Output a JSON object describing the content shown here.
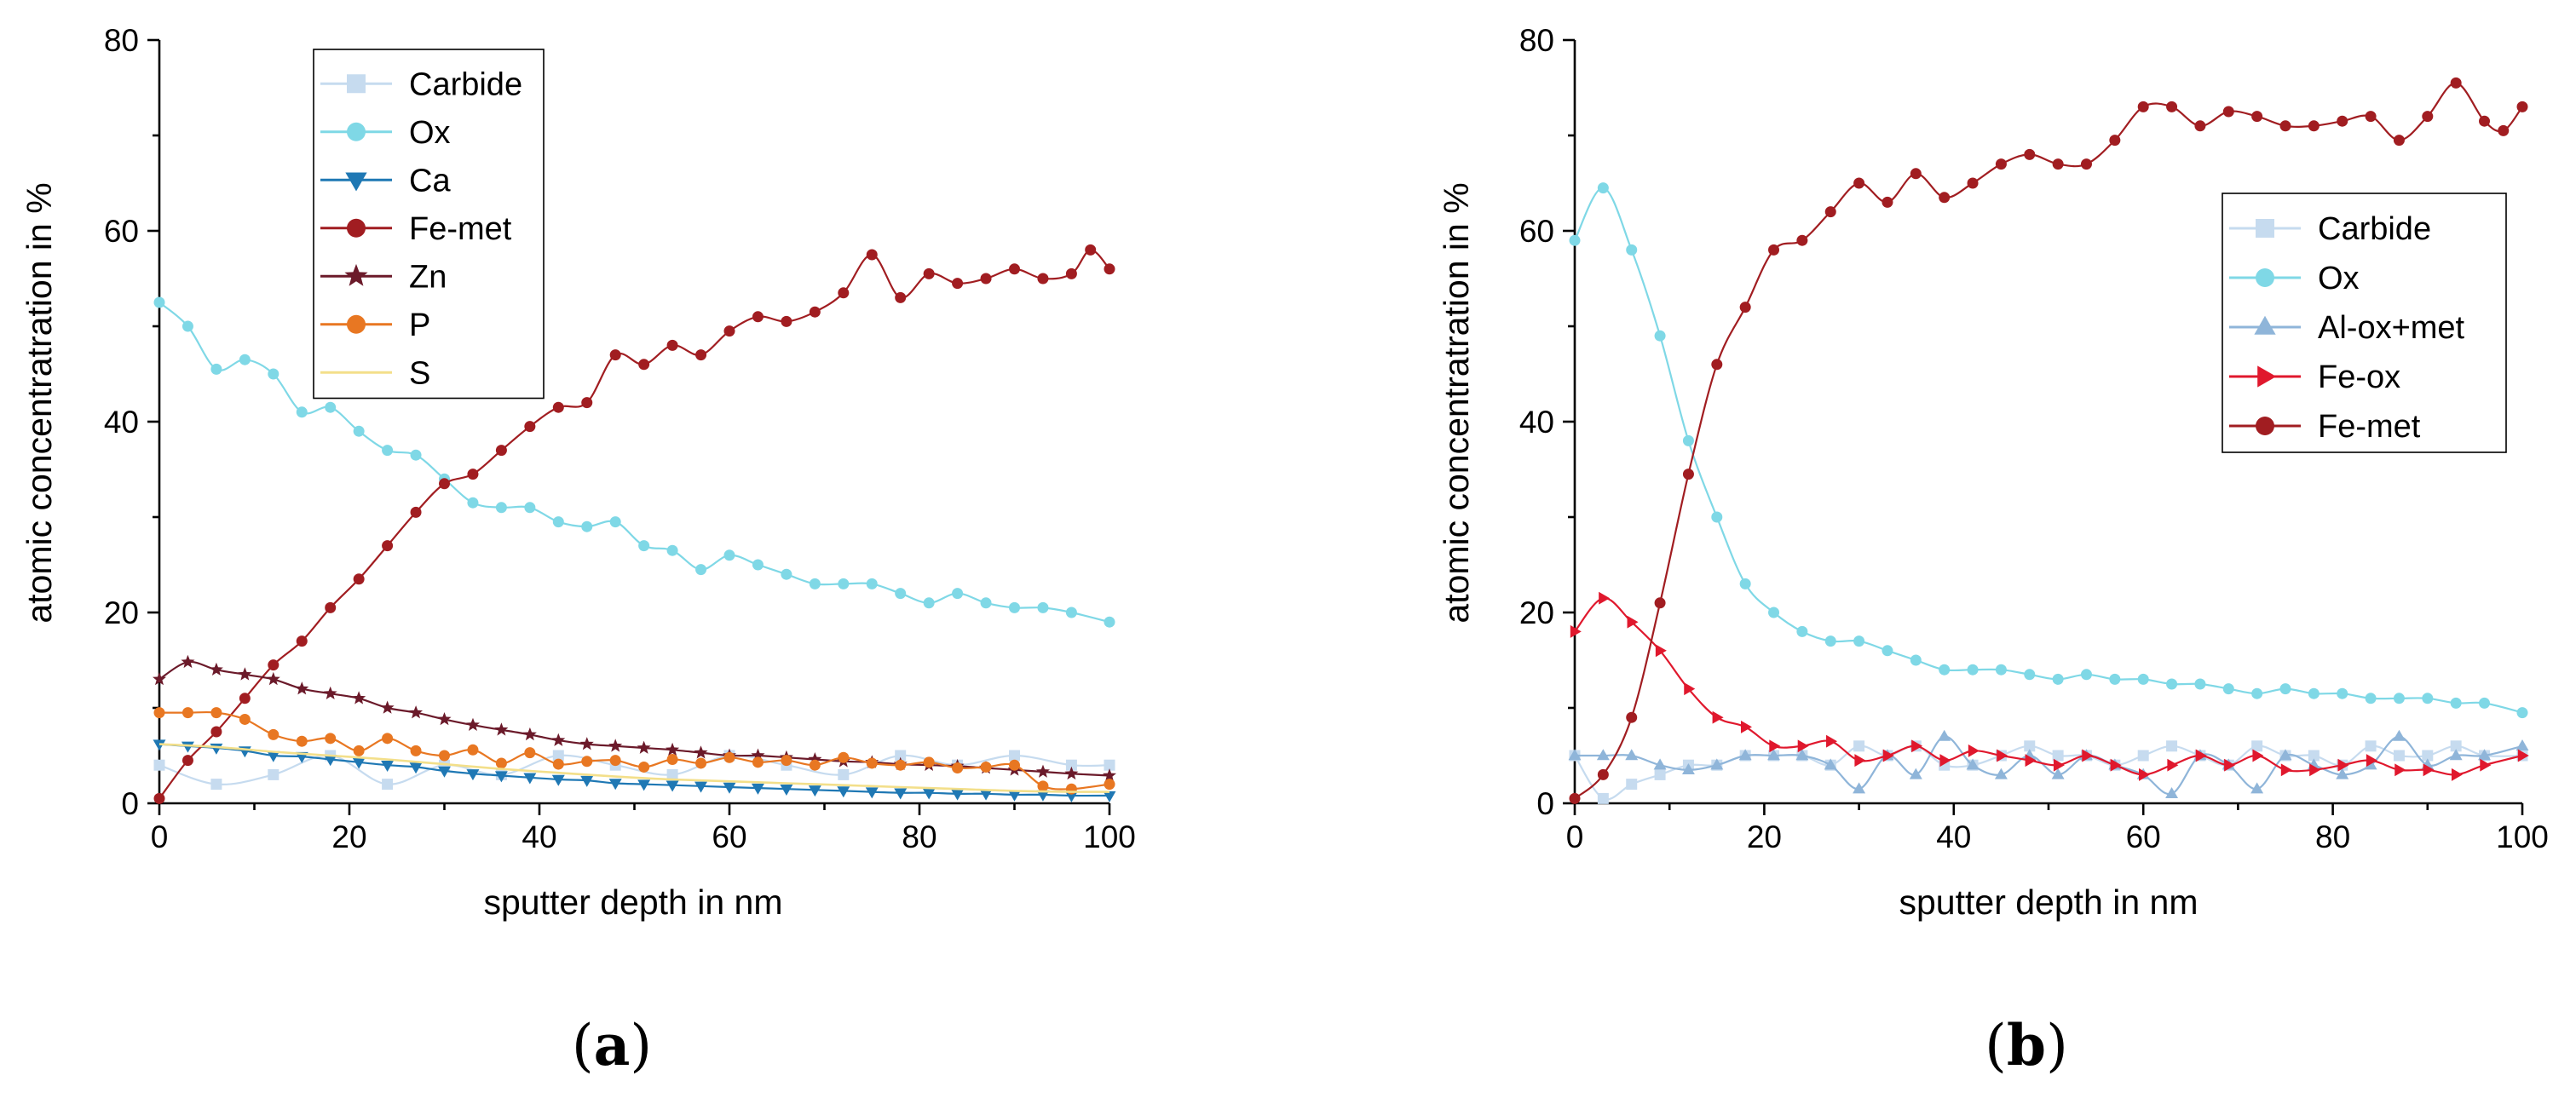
{
  "colors": {
    "Carbide": "#c6dbef",
    "Ox": "#7fd8e6",
    "Ca": "#1f78b4",
    "Fe-met": "#a11d21",
    "Zn": "#6b1a2a",
    "P": "#e87722",
    "S": "#f3df8a",
    "Al-ox+met": "#8fb5d9",
    "Fe-ox": "#e0182d"
  },
  "chart_data": [
    {
      "type": "line",
      "panel_label": {
        "open": "(",
        "letter": "a",
        "close": ")"
      },
      "xlabel": "sputter depth in nm",
      "ylabel": "atomic concentratration in %",
      "xlim": [
        0,
        100
      ],
      "ylim": [
        0,
        80
      ],
      "xticks": [
        "0",
        "20",
        "40",
        "60",
        "80",
        "100"
      ],
      "yticks": [
        "0",
        "20",
        "40",
        "60",
        "80"
      ],
      "legend_placement": "top-center",
      "legend": [
        "Carbide",
        "Ox",
        "Ca",
        "Fe-met",
        "Zn",
        "P",
        "S"
      ],
      "series": [
        {
          "name": "Carbide",
          "marker": "square",
          "color": "#c6dbef",
          "x": [
            0,
            6,
            12,
            18,
            24,
            30,
            36,
            42,
            48,
            54,
            60,
            66,
            72,
            78,
            84,
            90,
            96,
            100
          ],
          "y": [
            4,
            2,
            3,
            5,
            2,
            4,
            3,
            5,
            4,
            3,
            5,
            4,
            3,
            5,
            4,
            5,
            4,
            4
          ]
        },
        {
          "name": "Ox",
          "marker": "circle",
          "color": "#7fd8e6",
          "x": [
            0,
            3,
            6,
            9,
            12,
            15,
            18,
            21,
            24,
            27,
            30,
            33,
            36,
            39,
            42,
            45,
            48,
            51,
            54,
            57,
            60,
            63,
            66,
            69,
            72,
            75,
            78,
            81,
            84,
            87,
            90,
            93,
            96,
            100
          ],
          "y": [
            52.5,
            50,
            45.5,
            46.5,
            45,
            41,
            41.5,
            39,
            37,
            36.5,
            34,
            31.5,
            31,
            31,
            29.5,
            29,
            29.5,
            27,
            26.5,
            24.5,
            26,
            25,
            24,
            23,
            23,
            23,
            22,
            21,
            22,
            21,
            20.5,
            20.5,
            20,
            19
          ]
        },
        {
          "name": "Ca",
          "marker": "triangle-down",
          "color": "#1f78b4",
          "x": [
            0,
            3,
            6,
            9,
            12,
            15,
            18,
            21,
            24,
            27,
            30,
            33,
            36,
            39,
            42,
            45,
            48,
            51,
            54,
            57,
            60,
            63,
            66,
            69,
            72,
            75,
            78,
            81,
            84,
            87,
            90,
            93,
            96,
            100
          ],
          "y": [
            6.2,
            6,
            5.8,
            5.5,
            5,
            4.9,
            4.6,
            4.3,
            4,
            3.8,
            3.4,
            3.1,
            2.9,
            2.7,
            2.5,
            2.4,
            2.1,
            2,
            1.9,
            1.8,
            1.7,
            1.6,
            1.5,
            1.4,
            1.3,
            1.2,
            1.1,
            1.1,
            1,
            1,
            0.9,
            0.9,
            0.8,
            0.8
          ]
        },
        {
          "name": "Fe-met",
          "marker": "circle",
          "color": "#a11d21",
          "x": [
            0,
            3,
            6,
            9,
            12,
            15,
            18,
            21,
            24,
            27,
            30,
            33,
            36,
            39,
            42,
            45,
            48,
            51,
            54,
            57,
            60,
            63,
            66,
            69,
            72,
            75,
            78,
            81,
            84,
            87,
            90,
            93,
            96,
            98,
            100
          ],
          "y": [
            0.5,
            4.5,
            7.5,
            11,
            14.5,
            17,
            20.5,
            23.5,
            27,
            30.5,
            33.5,
            34.5,
            37,
            39.5,
            41.5,
            42,
            47,
            46,
            48,
            47,
            49.5,
            51,
            50.5,
            51.5,
            53.5,
            57.5,
            53,
            55.5,
            54.5,
            55,
            56,
            55,
            55.5,
            58,
            56
          ]
        },
        {
          "name": "Zn",
          "marker": "star",
          "color": "#6b1a2a",
          "x": [
            0,
            3,
            6,
            9,
            12,
            15,
            18,
            21,
            24,
            27,
            30,
            33,
            36,
            39,
            42,
            45,
            48,
            51,
            54,
            57,
            60,
            63,
            66,
            69,
            72,
            75,
            78,
            81,
            84,
            87,
            90,
            93,
            96,
            100
          ],
          "y": [
            13,
            14.8,
            14,
            13.5,
            13,
            12,
            11.5,
            11,
            10,
            9.5,
            8.8,
            8.2,
            7.7,
            7.2,
            6.6,
            6.2,
            6,
            5.8,
            5.6,
            5.3,
            5,
            5,
            4.8,
            4.6,
            4.4,
            4.3,
            4.1,
            4,
            3.9,
            3.7,
            3.5,
            3.3,
            3.1,
            2.9
          ]
        },
        {
          "name": "P",
          "marker": "circle",
          "color": "#e87722",
          "x": [
            0,
            3,
            6,
            9,
            12,
            15,
            18,
            21,
            24,
            27,
            30,
            33,
            36,
            39,
            42,
            45,
            48,
            51,
            54,
            57,
            60,
            63,
            66,
            69,
            72,
            75,
            78,
            81,
            84,
            87,
            90,
            93,
            96,
            100
          ],
          "y": [
            9.5,
            9.5,
            9.5,
            8.8,
            7.2,
            6.5,
            6.8,
            5.5,
            6.8,
            5.5,
            5,
            5.6,
            4.2,
            5.3,
            4.1,
            4.4,
            4.5,
            3.8,
            4.6,
            4.2,
            4.8,
            4.3,
            4.5,
            4,
            4.8,
            4.2,
            4,
            4.3,
            3.7,
            3.8,
            4,
            1.8,
            1.5,
            2
          ]
        },
        {
          "name": "S",
          "marker": "line",
          "color": "#f3df8a",
          "x": [
            0,
            6,
            12,
            18,
            24,
            30,
            36,
            42,
            48,
            54,
            60,
            66,
            72,
            78,
            84,
            90,
            96,
            100
          ],
          "y": [
            6.2,
            5.9,
            5.4,
            5,
            4.6,
            4.1,
            3.6,
            3.2,
            2.8,
            2.5,
            2.3,
            2.1,
            1.9,
            1.7,
            1.5,
            1.3,
            1.2,
            1.2
          ]
        }
      ]
    },
    {
      "type": "line",
      "panel_label": {
        "open": "(",
        "letter": "b",
        "close": ")"
      },
      "xlabel": "sputter depth in nm",
      "ylabel": "atomic concentratration in %",
      "xlim": [
        0,
        100
      ],
      "ylim": [
        0,
        80
      ],
      "xticks": [
        "0",
        "20",
        "40",
        "60",
        "80",
        "100"
      ],
      "yticks": [
        "0",
        "20",
        "40",
        "60",
        "80"
      ],
      "legend_placement": "upper-right",
      "legend": [
        "Carbide",
        "Ox",
        "Al-ox+met",
        "Fe-ox",
        "Fe-met"
      ],
      "series": [
        {
          "name": "Carbide",
          "marker": "square",
          "color": "#c6dbef",
          "x": [
            0,
            3,
            6,
            9,
            12,
            15,
            18,
            21,
            24,
            27,
            30,
            33,
            36,
            39,
            42,
            45,
            48,
            51,
            54,
            57,
            60,
            63,
            66,
            69,
            72,
            75,
            78,
            81,
            84,
            87,
            90,
            93,
            96,
            100
          ],
          "y": [
            5,
            0.5,
            2,
            3,
            4,
            4,
            5,
            5,
            5,
            4,
            6,
            5,
            6,
            4,
            4,
            5,
            6,
            5,
            5,
            4,
            5,
            6,
            5,
            4,
            6,
            5,
            5,
            4,
            6,
            5,
            5,
            6,
            5,
            5
          ]
        },
        {
          "name": "Ox",
          "marker": "circle",
          "color": "#7fd8e6",
          "x": [
            0,
            3,
            6,
            9,
            12,
            15,
            18,
            21,
            24,
            27,
            30,
            33,
            36,
            39,
            42,
            45,
            48,
            51,
            54,
            57,
            60,
            63,
            66,
            69,
            72,
            75,
            78,
            81,
            84,
            87,
            90,
            93,
            96,
            100
          ],
          "y": [
            59,
            64.5,
            58,
            49,
            38,
            30,
            23,
            20,
            18,
            17,
            17,
            16,
            15,
            14,
            14,
            14,
            13.5,
            13,
            13.5,
            13,
            13,
            12.5,
            12.5,
            12,
            11.5,
            12,
            11.5,
            11.5,
            11,
            11,
            11,
            10.5,
            10.5,
            9.5
          ]
        },
        {
          "name": "Al-ox+met",
          "marker": "triangle-up",
          "color": "#8fb5d9",
          "x": [
            0,
            3,
            6,
            9,
            12,
            15,
            18,
            21,
            24,
            27,
            30,
            33,
            36,
            39,
            42,
            45,
            48,
            51,
            54,
            57,
            60,
            63,
            66,
            69,
            72,
            75,
            78,
            81,
            84,
            87,
            90,
            93,
            96,
            100
          ],
          "y": [
            5,
            5,
            5,
            4,
            3.5,
            4,
            5,
            5,
            5,
            4,
            1.5,
            5,
            3,
            7,
            4,
            3,
            5,
            3,
            5,
            4,
            3,
            1,
            5,
            4,
            1.5,
            5,
            4,
            3,
            4,
            7,
            4,
            5,
            5,
            6
          ]
        },
        {
          "name": "Fe-ox",
          "marker": "triangle-right",
          "color": "#e0182d",
          "x": [
            0,
            3,
            6,
            9,
            12,
            15,
            18,
            21,
            24,
            27,
            30,
            33,
            36,
            39,
            42,
            45,
            48,
            51,
            54,
            57,
            60,
            63,
            66,
            69,
            72,
            75,
            78,
            81,
            84,
            87,
            90,
            93,
            96,
            100
          ],
          "y": [
            18,
            21.5,
            19,
            16,
            12,
            9,
            8,
            6,
            6,
            6.5,
            4.5,
            5,
            6,
            4.5,
            5.5,
            5,
            4.5,
            4,
            5,
            4,
            3,
            4,
            5,
            4,
            5,
            3.5,
            3.5,
            4,
            4.5,
            3.5,
            3.5,
            3,
            4,
            5
          ]
        },
        {
          "name": "Fe-met",
          "marker": "circle",
          "color": "#a11d21",
          "x": [
            0,
            3,
            6,
            9,
            12,
            15,
            18,
            21,
            24,
            27,
            30,
            33,
            36,
            39,
            42,
            45,
            48,
            51,
            54,
            57,
            60,
            63,
            66,
            69,
            72,
            75,
            78,
            81,
            84,
            87,
            90,
            93,
            96,
            98,
            100
          ],
          "y": [
            0.5,
            3,
            9,
            21,
            34.5,
            46,
            52,
            58,
            59,
            62,
            65,
            63,
            66,
            63.5,
            65,
            67,
            68,
            67,
            67,
            69.5,
            73,
            73,
            71,
            72.5,
            72,
            71,
            71,
            71.5,
            72,
            69.5,
            72,
            75.5,
            71.5,
            70.5,
            73
          ]
        }
      ]
    }
  ]
}
